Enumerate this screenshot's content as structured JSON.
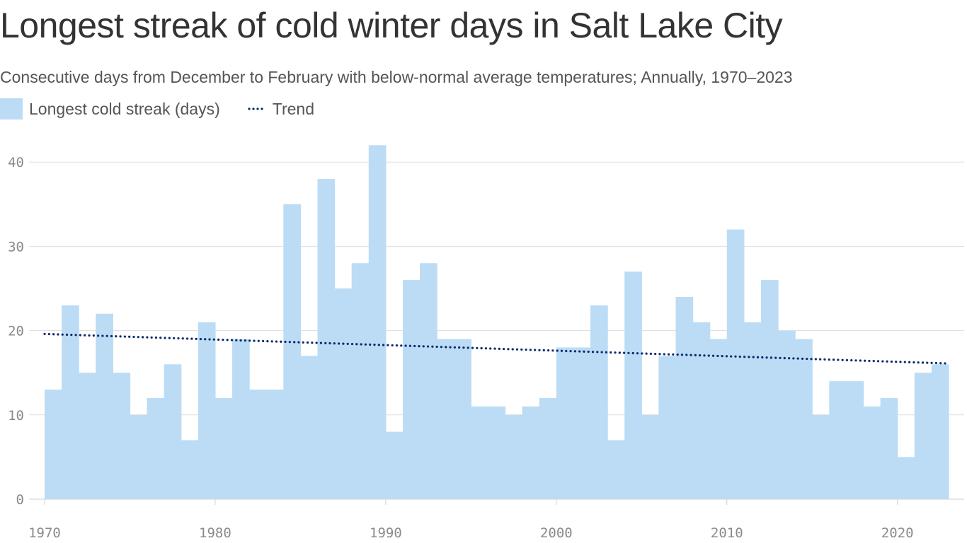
{
  "title": "Longest streak of cold winter days in Salt Lake City",
  "subtitle": "Consecutive days from December to February with below-normal average temperatures; Annually, 1970–2023",
  "legend": {
    "bars_label": "Longest cold streak (days)",
    "trend_label": "Trend"
  },
  "colors": {
    "bar": "#bcdcf5",
    "trend": "#0b2c6b",
    "grid": "#dddddd",
    "tick_text": "#8a8a8a"
  },
  "chart_data": {
    "type": "bar",
    "title": "Longest streak of cold winter days in Salt Lake City",
    "subtitle": "Consecutive days from December to February with below-normal average temperatures; Annually, 1970–2023",
    "xlabel": "",
    "ylabel": "",
    "x": [
      1970,
      1971,
      1972,
      1973,
      1974,
      1975,
      1976,
      1977,
      1978,
      1979,
      1980,
      1981,
      1982,
      1983,
      1984,
      1985,
      1986,
      1987,
      1988,
      1989,
      1990,
      1991,
      1992,
      1993,
      1994,
      1995,
      1996,
      1997,
      1998,
      1999,
      2000,
      2001,
      2002,
      2003,
      2004,
      2005,
      2006,
      2007,
      2008,
      2009,
      2010,
      2011,
      2012,
      2013,
      2014,
      2015,
      2016,
      2017,
      2018,
      2019,
      2020,
      2021,
      2022
    ],
    "series": [
      {
        "name": "Longest cold streak (days)",
        "values": [
          13,
          23,
          15,
          22,
          15,
          10,
          12,
          16,
          7,
          21,
          12,
          19,
          13,
          13,
          35,
          17,
          38,
          25,
          28,
          42,
          8,
          26,
          28,
          19,
          19,
          11,
          11,
          10,
          11,
          12,
          18,
          18,
          23,
          7,
          27,
          10,
          17,
          24,
          21,
          19,
          32,
          21,
          26,
          20,
          19,
          10,
          14,
          14,
          11,
          12,
          5,
          15,
          16
        ]
      }
    ],
    "trend": {
      "name": "Trend",
      "start": {
        "x": 1970,
        "y": 19.6
      },
      "end": {
        "x": 2023,
        "y": 16.1
      }
    },
    "ylim": [
      0,
      42
    ],
    "xlim": [
      1970,
      2023
    ],
    "yticks": [
      0,
      10,
      20,
      30,
      40
    ],
    "xticks": [
      1970,
      1980,
      1990,
      2000,
      2010,
      2020
    ],
    "grid": "horizontal",
    "legend_position": "top-left"
  }
}
